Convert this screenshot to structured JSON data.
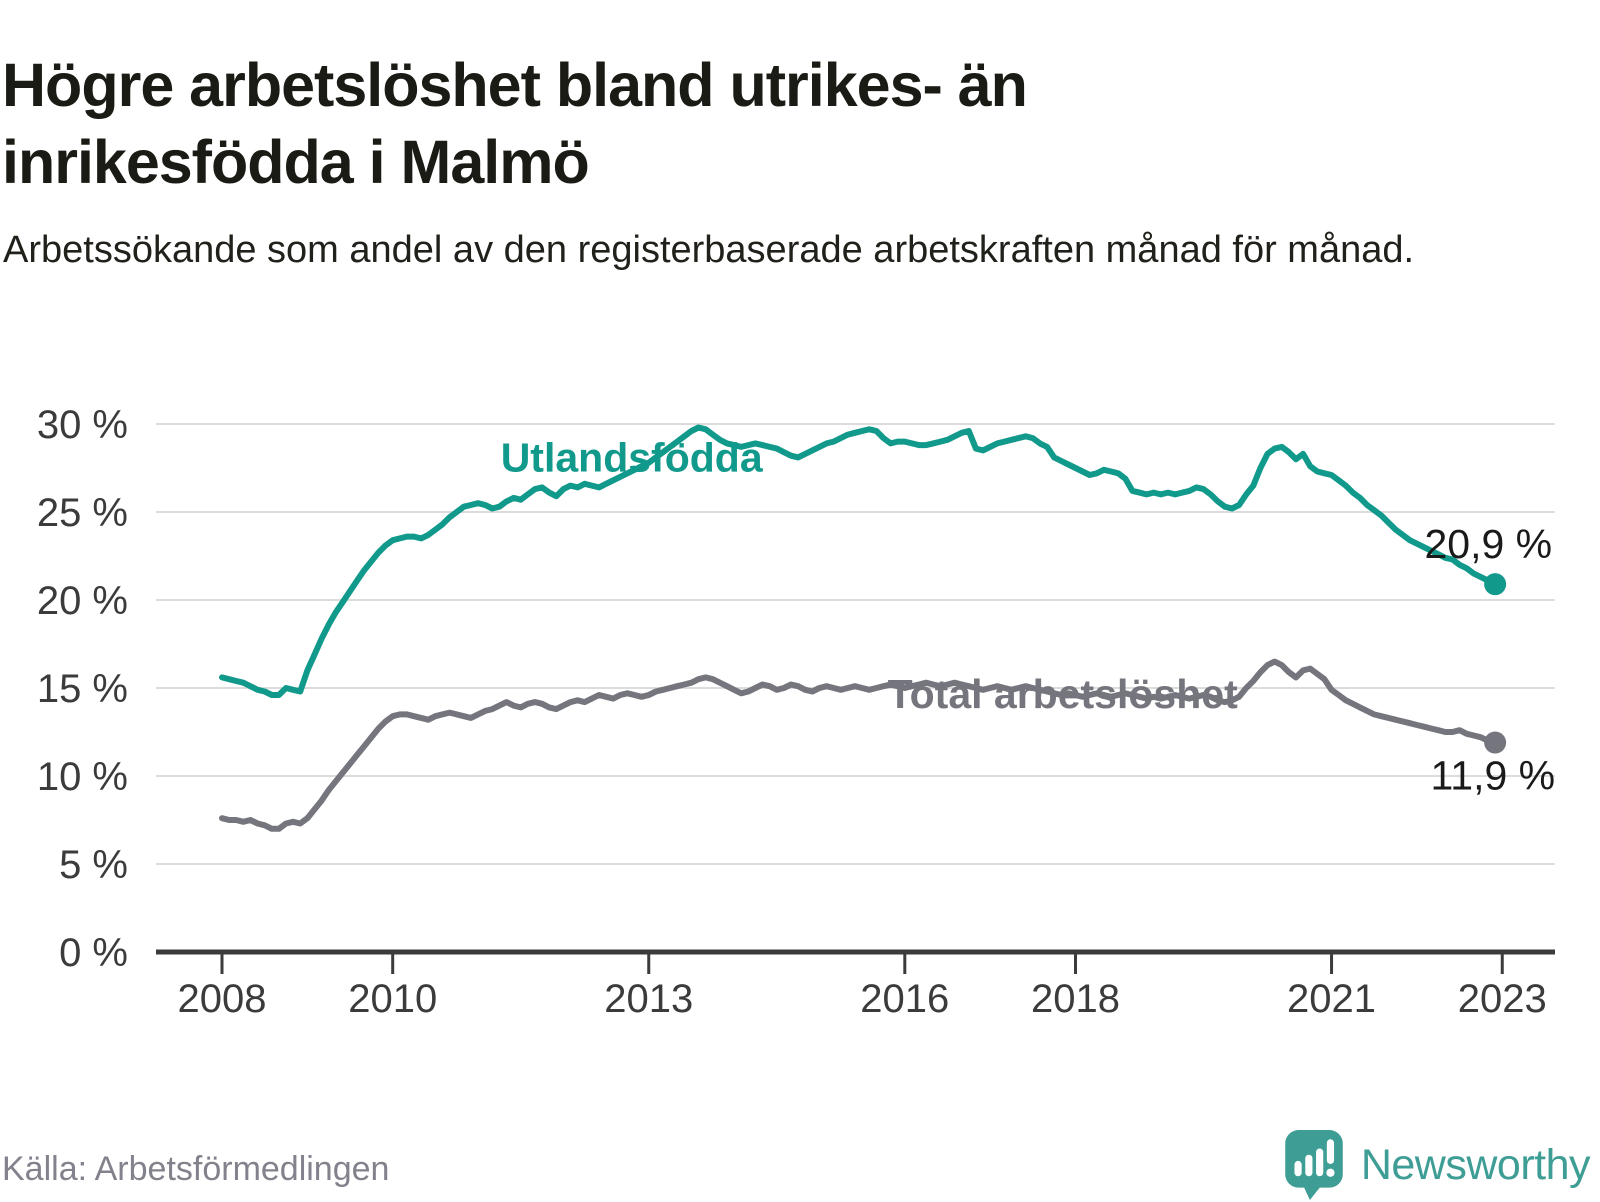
{
  "header": {
    "title": "Högre arbetslöshet bland utrikes- än inrikesfödda i Malmö",
    "subtitle": "Arbetssökande som andel av den registerbaserade arbetskraften månad för månad."
  },
  "chart_data": {
    "type": "line",
    "title": "Högre arbetslöshet bland utrikes- än inrikesfödda i Malmö",
    "subtitle": "Arbetssökande som andel av den registerbaserade arbetskraften månad för månad.",
    "x_unit": "month",
    "x_start_year": 2008,
    "x_end": "2022-12",
    "ylim": [
      0,
      30
    ],
    "xlim_years": [
      2007.4,
      2023.6
    ],
    "grid": "horizontal",
    "y_ticks": [
      {
        "value": 0,
        "label": "0 %"
      },
      {
        "value": 5,
        "label": "5 %"
      },
      {
        "value": 10,
        "label": "10 %"
      },
      {
        "value": 15,
        "label": "15 %"
      },
      {
        "value": 20,
        "label": "20 %"
      },
      {
        "value": 25,
        "label": "25 %"
      },
      {
        "value": 30,
        "label": "30 %"
      }
    ],
    "x_ticks": [
      {
        "year": 2008,
        "label": "2008"
      },
      {
        "year": 2010,
        "label": "2010"
      },
      {
        "year": 2013,
        "label": "2013"
      },
      {
        "year": 2016,
        "label": "2016"
      },
      {
        "year": 2018,
        "label": "2018"
      },
      {
        "year": 2021,
        "label": "2021"
      },
      {
        "year": 2023,
        "label": "2023"
      }
    ],
    "series": [
      {
        "name": "Utlandsfödda",
        "color": "#11998B",
        "end_label": "20,9 %",
        "label_pos": {
          "year": 2012.8,
          "value": 28.1
        },
        "end_label_offset": {
          "dx": 57,
          "dy": -26
        },
        "values": [
          15.6,
          15.5,
          15.4,
          15.3,
          15.1,
          14.9,
          14.8,
          14.6,
          14.6,
          15.0,
          14.9,
          14.8,
          16.0,
          16.9,
          17.8,
          18.6,
          19.3,
          19.9,
          20.5,
          21.1,
          21.7,
          22.2,
          22.7,
          23.1,
          23.4,
          23.5,
          23.6,
          23.6,
          23.5,
          23.7,
          24.0,
          24.3,
          24.7,
          25.0,
          25.3,
          25.4,
          25.5,
          25.4,
          25.2,
          25.3,
          25.6,
          25.8,
          25.7,
          26.0,
          26.3,
          26.4,
          26.1,
          25.9,
          26.3,
          26.5,
          26.4,
          26.6,
          26.5,
          26.4,
          26.6,
          26.8,
          27.0,
          27.2,
          27.4,
          27.6,
          27.8,
          28.1,
          28.4,
          28.7,
          29.0,
          29.3,
          29.6,
          29.8,
          29.7,
          29.4,
          29.1,
          28.9,
          28.8,
          28.7,
          28.8,
          28.9,
          28.8,
          28.7,
          28.6,
          28.4,
          28.2,
          28.1,
          28.3,
          28.5,
          28.7,
          28.9,
          29.0,
          29.2,
          29.4,
          29.5,
          29.6,
          29.7,
          29.6,
          29.2,
          28.9,
          29.0,
          29.0,
          28.9,
          28.8,
          28.8,
          28.9,
          29.0,
          29.1,
          29.3,
          29.5,
          29.6,
          28.6,
          28.5,
          28.7,
          28.9,
          29.0,
          29.1,
          29.2,
          29.3,
          29.2,
          28.9,
          28.7,
          28.1,
          27.9,
          27.7,
          27.5,
          27.3,
          27.1,
          27.2,
          27.4,
          27.3,
          27.2,
          26.9,
          26.2,
          26.1,
          26.0,
          26.1,
          26.0,
          26.1,
          26.0,
          26.1,
          26.2,
          26.4,
          26.3,
          26.0,
          25.6,
          25.3,
          25.2,
          25.4,
          26.0,
          26.5,
          27.5,
          28.3,
          28.6,
          28.7,
          28.4,
          28.0,
          28.3,
          27.6,
          27.3,
          27.2,
          27.1,
          26.8,
          26.5,
          26.1,
          25.8,
          25.4,
          25.1,
          24.8,
          24.4,
          24.0,
          23.7,
          23.4,
          23.2,
          23.0,
          22.8,
          22.6,
          22.4,
          22.3,
          22.0,
          21.8,
          21.5,
          21.3,
          21.1,
          20.9
        ]
      },
      {
        "name": "Total arbetslöshet",
        "color": "#75757D",
        "end_label": "11,9 %",
        "label_pos": {
          "year": 2017.85,
          "value": 14.65
        },
        "end_label_offset": {
          "dx": 60,
          "dy": 47
        },
        "values": [
          7.6,
          7.5,
          7.5,
          7.4,
          7.5,
          7.3,
          7.2,
          7.0,
          7.0,
          7.3,
          7.4,
          7.3,
          7.6,
          8.1,
          8.6,
          9.2,
          9.7,
          10.2,
          10.7,
          11.2,
          11.7,
          12.2,
          12.7,
          13.1,
          13.4,
          13.5,
          13.5,
          13.4,
          13.3,
          13.2,
          13.4,
          13.5,
          13.6,
          13.5,
          13.4,
          13.3,
          13.5,
          13.7,
          13.8,
          14.0,
          14.2,
          14.0,
          13.9,
          14.1,
          14.2,
          14.1,
          13.9,
          13.8,
          14.0,
          14.2,
          14.3,
          14.2,
          14.4,
          14.6,
          14.5,
          14.4,
          14.6,
          14.7,
          14.6,
          14.5,
          14.6,
          14.8,
          14.9,
          15.0,
          15.1,
          15.2,
          15.3,
          15.5,
          15.6,
          15.5,
          15.3,
          15.1,
          14.9,
          14.7,
          14.8,
          15.0,
          15.2,
          15.1,
          14.9,
          15.0,
          15.2,
          15.1,
          14.9,
          14.8,
          15.0,
          15.1,
          15.0,
          14.9,
          15.0,
          15.1,
          15.0,
          14.9,
          15.0,
          15.1,
          15.2,
          15.1,
          15.0,
          15.1,
          15.2,
          15.3,
          15.2,
          15.1,
          15.2,
          15.3,
          15.2,
          15.1,
          15.0,
          14.9,
          15.0,
          15.1,
          15.0,
          14.9,
          15.0,
          15.1,
          15.0,
          14.9,
          14.8,
          14.7,
          14.6,
          14.7,
          14.6,
          14.5,
          14.6,
          14.7,
          14.6,
          14.5,
          14.6,
          14.7,
          14.6,
          14.5,
          14.4,
          14.5,
          14.4,
          14.5,
          14.6,
          14.5,
          14.4,
          14.5,
          14.6,
          14.5,
          14.3,
          14.2,
          14.3,
          14.5,
          15.0,
          15.4,
          15.9,
          16.3,
          16.5,
          16.3,
          15.9,
          15.6,
          16.0,
          16.1,
          15.8,
          15.5,
          14.9,
          14.6,
          14.3,
          14.1,
          13.9,
          13.7,
          13.5,
          13.4,
          13.3,
          13.2,
          13.1,
          13.0,
          12.9,
          12.8,
          12.7,
          12.6,
          12.5,
          12.5,
          12.6,
          12.4,
          12.3,
          12.2,
          12.0,
          11.9
        ]
      }
    ],
    "colors": {
      "grid": "#dcdcdc",
      "axis": "#3b3b3b",
      "tick_text": "#3b3b3b",
      "value_label_text": "#1a1a1a",
      "teal": "#11998B",
      "gray": "#75757D",
      "brand_teal": "#3e9d94"
    },
    "legend_position": "inline-labels"
  },
  "footer": {
    "source": "Källa: Arbetsförmedlingen",
    "brand": "Newsworthy"
  }
}
